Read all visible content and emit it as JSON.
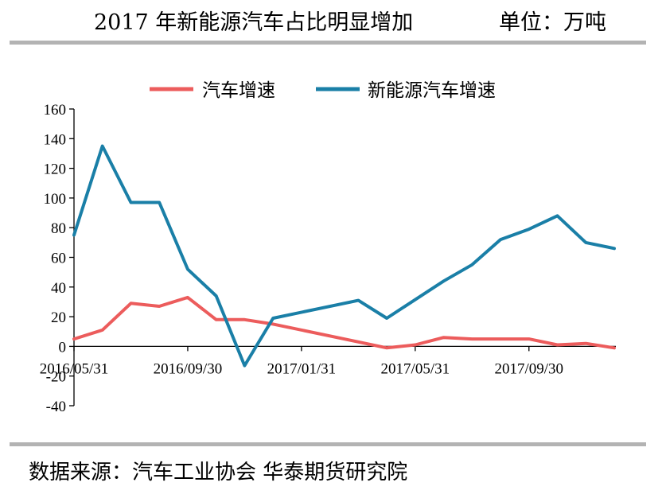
{
  "header": {
    "title": "2017 年新能源汽车占比明显增加",
    "unit": "单位：万吨"
  },
  "source": "数据来源：汽车工业协会 华泰期货研究院",
  "colors": {
    "auto_growth": "#ec5c5c",
    "nev_growth": "#1a7fa7",
    "axis": "#000000",
    "rule": "#b3b3b3"
  },
  "chart_data": {
    "type": "line",
    "title": "2017 年新能源汽车占比明显增加",
    "xlabel": "",
    "ylabel": "",
    "ylim": [
      -40,
      160
    ],
    "yticks": [
      -40,
      -20,
      0,
      20,
      40,
      60,
      80,
      100,
      120,
      140,
      160
    ],
    "x_tick_labels": [
      "2016/05/31",
      "2016/09/30",
      "2017/01/31",
      "2017/05/31",
      "2017/09/30"
    ],
    "x": [
      "2016/05/31",
      "2016/06/30",
      "2016/07/31",
      "2016/08/31",
      "2016/09/30",
      "2016/10/31",
      "2016/11/30",
      "2016/12/31",
      "2017/01/31",
      "2017/02/28",
      "2017/03/31",
      "2017/04/30",
      "2017/05/31",
      "2017/06/30",
      "2017/07/31",
      "2017/08/31",
      "2017/09/30",
      "2017/10/31",
      "2017/11/30",
      "2017/12/31"
    ],
    "grid": false,
    "legend": "top",
    "series": [
      {
        "name": "汽车增速",
        "color": "#ec5c5c",
        "values": [
          5,
          11,
          29,
          27,
          33,
          18,
          18,
          15,
          null,
          null,
          3,
          -1,
          1,
          6,
          5,
          5,
          5,
          1,
          2,
          -1
        ]
      },
      {
        "name": "新能源汽车增速",
        "color": "#1a7fa7",
        "values": [
          75,
          135,
          97,
          97,
          52,
          34,
          -13,
          19,
          null,
          null,
          31,
          19,
          null,
          44,
          55,
          72,
          79,
          88,
          70,
          66
        ]
      }
    ]
  }
}
